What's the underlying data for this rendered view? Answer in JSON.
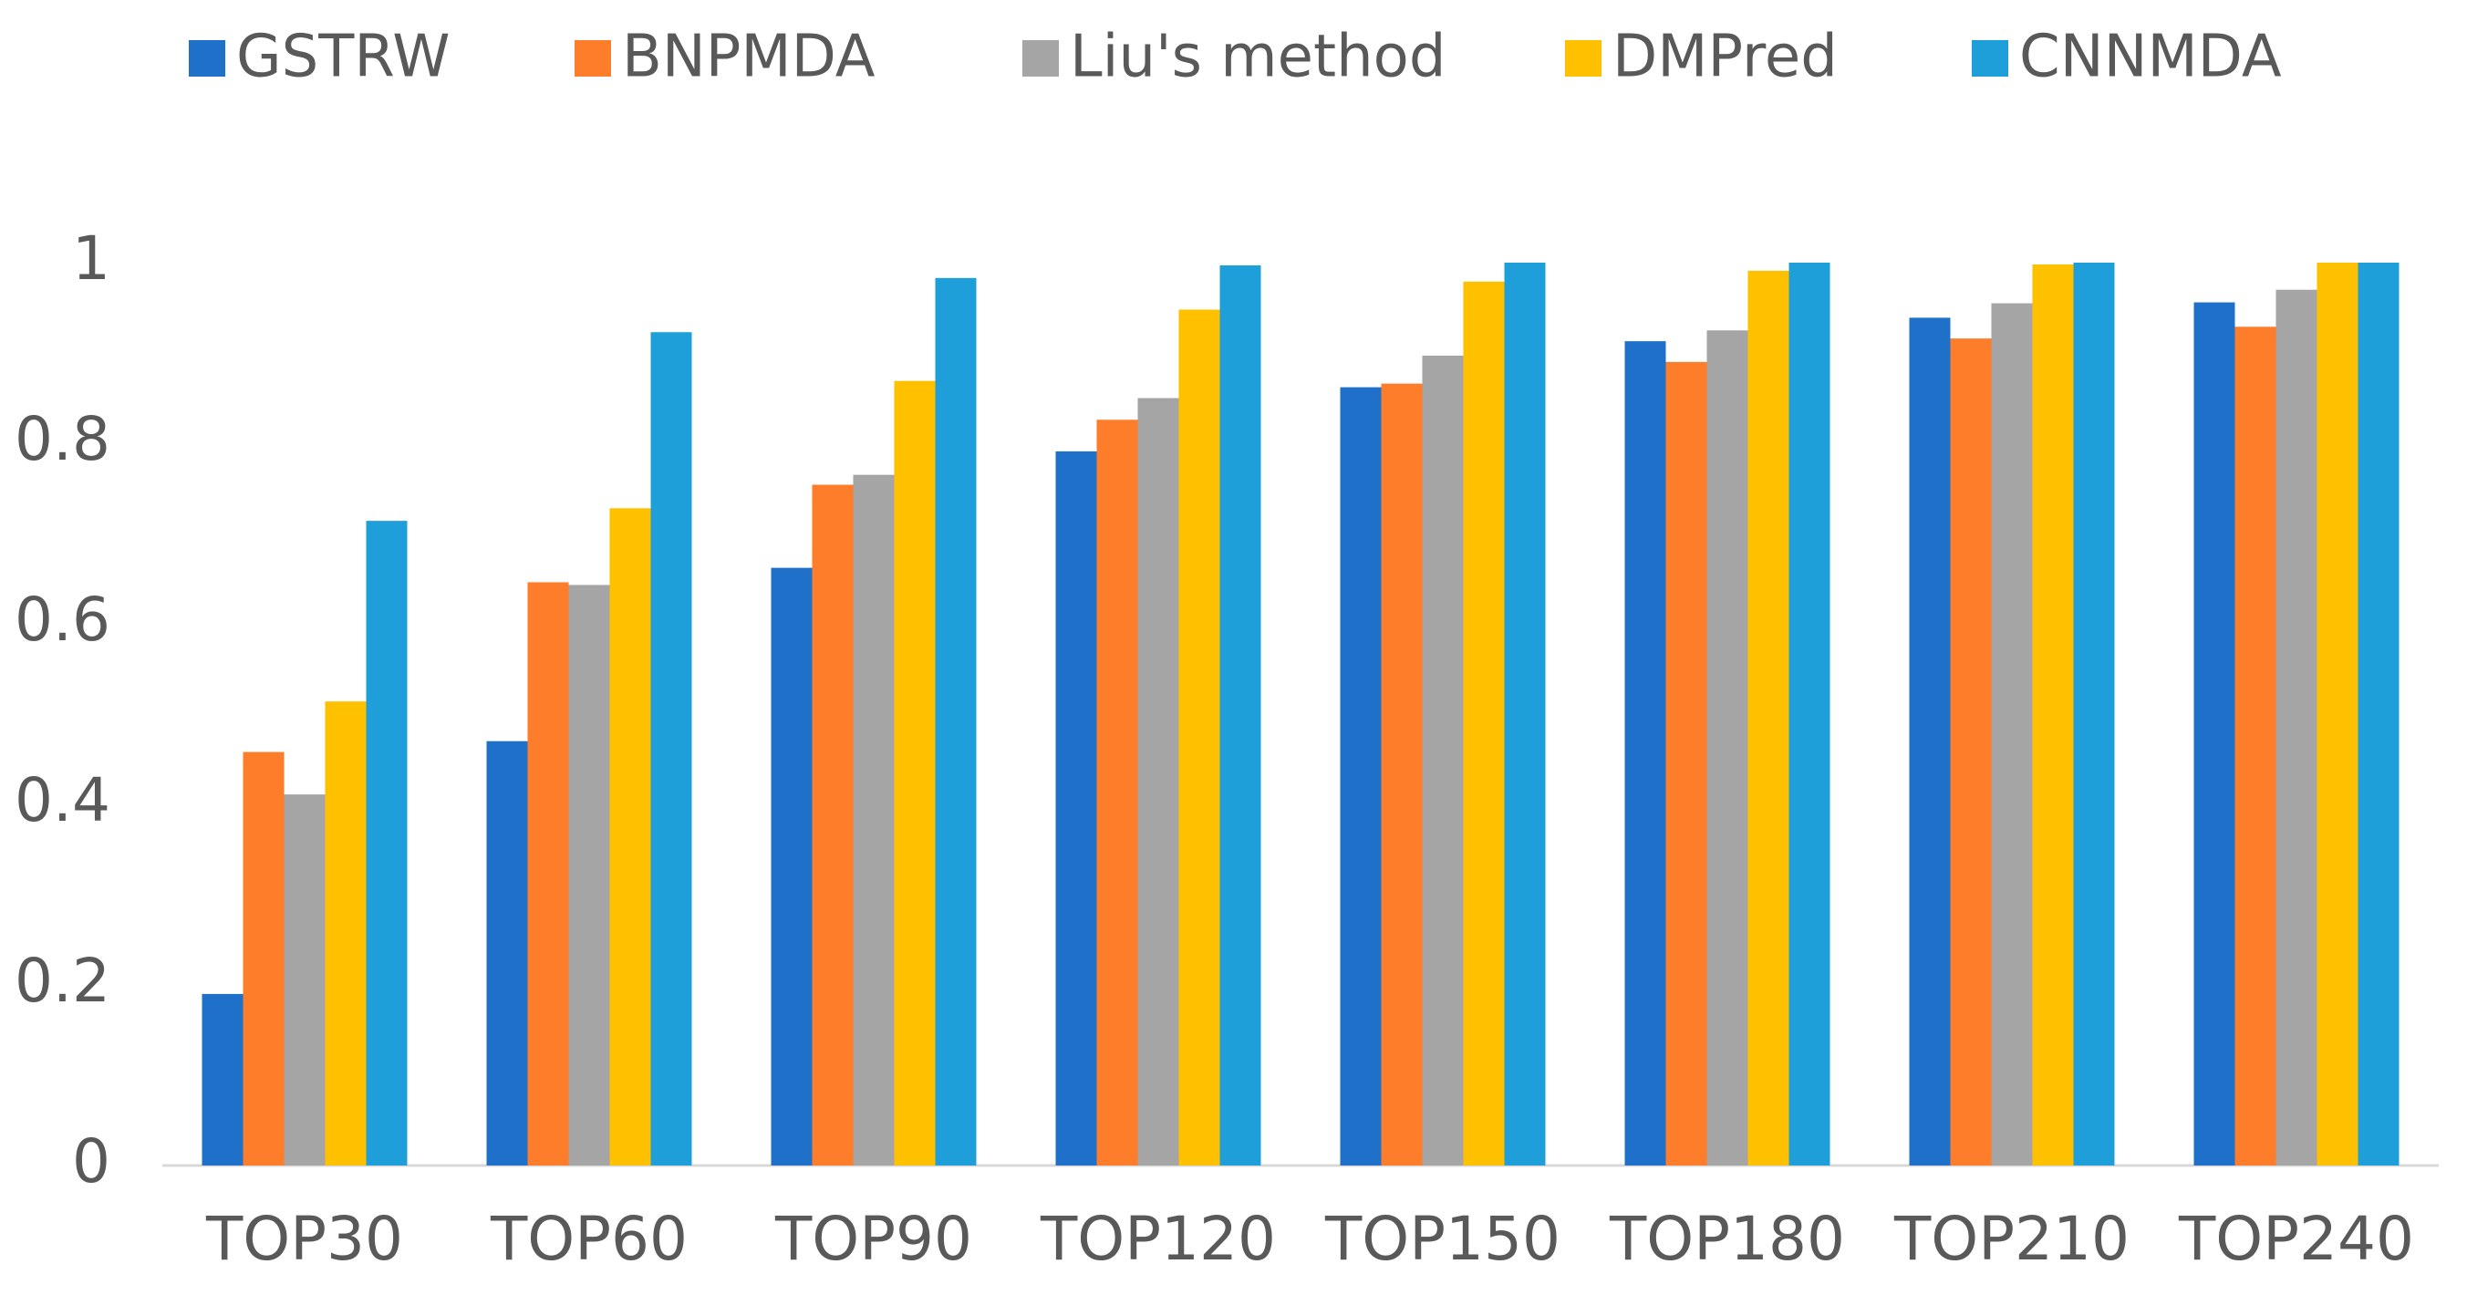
{
  "chart_data": {
    "type": "bar",
    "categories": [
      "TOP30",
      "TOP60",
      "TOP90",
      "TOP120",
      "TOP150",
      "TOP180",
      "TOP210",
      "TOP240"
    ],
    "series": [
      {
        "name": "GSTRW",
        "color": "#1f70c8",
        "values": [
          0.19,
          0.47,
          0.662,
          0.791,
          0.862,
          0.913,
          0.939,
          0.956
        ]
      },
      {
        "name": "BNPMDA",
        "color": "#fd7d2a",
        "values": [
          0.458,
          0.646,
          0.754,
          0.826,
          0.866,
          0.89,
          0.916,
          0.929
        ]
      },
      {
        "name": "Liu's method",
        "color": "#a5a5a5",
        "values": [
          0.411,
          0.643,
          0.765,
          0.85,
          0.897,
          0.925,
          0.955,
          0.97
        ]
      },
      {
        "name": "DMPred",
        "color": "#ffc000",
        "values": [
          0.514,
          0.728,
          0.869,
          0.948,
          0.979,
          0.991,
          0.998,
          1.0
        ]
      },
      {
        "name": "CNNMDA",
        "color": "#1f9fd9",
        "values": [
          0.714,
          0.923,
          0.983,
          0.997,
          1.0,
          1.0,
          1.0,
          1.0
        ]
      }
    ],
    "ylim": [
      0,
      1
    ],
    "yticks": [
      0,
      0.2,
      0.4,
      0.6,
      0.8,
      1
    ],
    "grid": false,
    "legend": "top"
  }
}
